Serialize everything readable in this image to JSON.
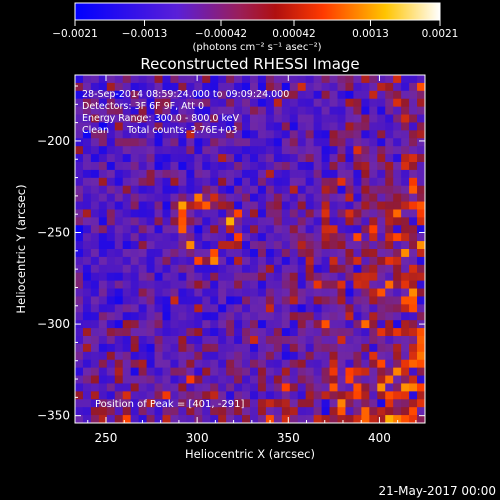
{
  "chart_data": {
    "type": "heatmap",
    "title": "Reconstructed RHESSI Image",
    "xlabel": "Heliocentric X (arcsec)",
    "ylabel": "Heliocentric Y (arcsec)",
    "xlim": [
      233,
      425
    ],
    "ylim": [
      -354,
      -164
    ],
    "x_ticks": [
      250,
      300,
      350,
      400
    ],
    "y_ticks": [
      -350,
      -300,
      -250,
      -200
    ],
    "colorbar": {
      "min": -0.0021,
      "max": 0.0021,
      "tick_values": [
        -0.0021,
        -0.0013,
        -0.00042,
        0.00042,
        0.0013,
        0.0021
      ],
      "tick_labels": [
        "-0.0021",
        "-0.0013",
        "-0.00042",
        "0.00042",
        "0.0013",
        "0.0021"
      ],
      "units_label": "(photons cm⁻² s⁻¹ asec⁻²)",
      "colors": [
        "#0000ff",
        "#4a00d8",
        "#8a2be2",
        "#9e1f1f",
        "#ff4500",
        "#ffd000",
        "#ffffff"
      ]
    },
    "annotations": [
      "28-Sep-2014 08:59:24.000 to 09:09:24.000",
      "Detectors: 3F 6F 9F, Att 0",
      "Energy Range: 300.0 - 800.0 keV",
      "Clean      Total counts: 3.76E+03"
    ],
    "peak_label": "Position of Peak = [401, -291]",
    "peak": [
      401,
      -291
    ]
  },
  "footer": {
    "date": "21-May-2017 00:00"
  }
}
